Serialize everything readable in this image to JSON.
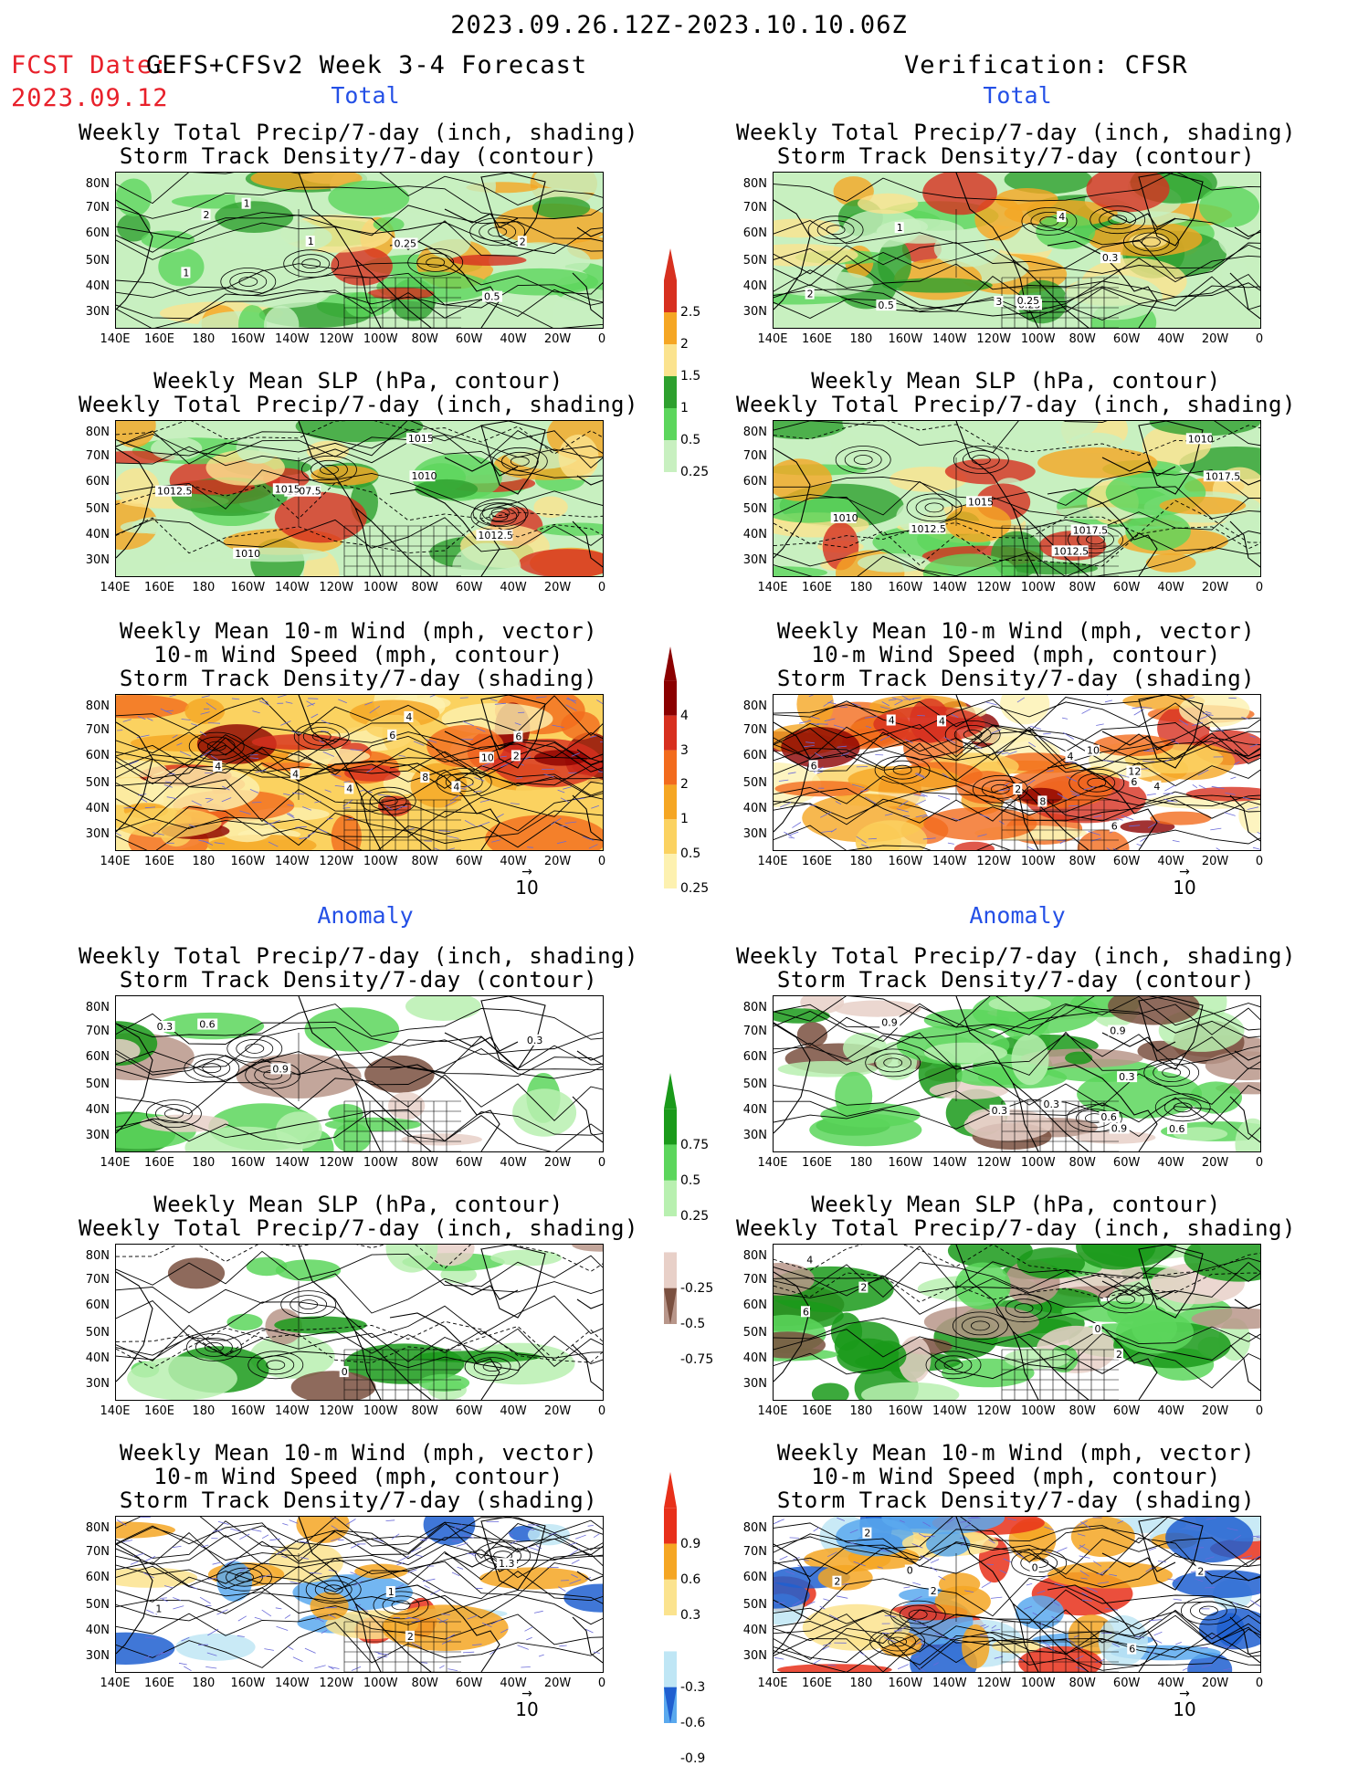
{
  "header": {
    "date_range": "2023.09.26.12Z-2023.10.10.06Z",
    "fcst_label": "FCST Date:",
    "fcst_date": "2023.09.12",
    "forecast_name": "GEFS+CFSv2 Week 3-4 Forecast",
    "verification": "Verification: CFSR"
  },
  "sections": {
    "total": "Total",
    "anomaly": "Anomaly"
  },
  "panel_titles": {
    "precip_storm": [
      "Weekly Total Precip/7-day (inch, shading)",
      "Storm Track Density/7-day (contour)"
    ],
    "slp_precip": [
      "Weekly Mean SLP (hPa, contour)",
      "Weekly Total Precip/7-day (inch, shading)"
    ],
    "wind_storm": [
      "Weekly Mean 10-m Wind (mph, vector)",
      "10-m Wind Speed (mph, contour)",
      "Storm Track Density/7-day (shading)"
    ]
  },
  "axes": {
    "lat_labels": [
      "80N",
      "70N",
      "60N",
      "50N",
      "40N",
      "30N"
    ],
    "lon_labels": [
      "140E",
      "160E",
      "180",
      "160W",
      "140W",
      "120W",
      "100W",
      "80W",
      "60W",
      "40W",
      "20W",
      "0"
    ]
  },
  "vector_reference": "10",
  "colorbars": {
    "precip_total": {
      "labels": [
        "2.5",
        "2",
        "1.5",
        "1",
        "0.5",
        "0.25"
      ],
      "colors": [
        "#d7301f",
        "#f5a623",
        "#fbe38e",
        "#2ea02e",
        "#5cd65c",
        "#c8f0c0"
      ]
    },
    "storm_total": {
      "labels": [
        "4",
        "3",
        "2",
        "1",
        "0.5",
        "0.25"
      ],
      "colors": [
        "#8b0000",
        "#d7301f",
        "#f26b1d",
        "#f5a623",
        "#fbd260",
        "#fdf1b0"
      ]
    },
    "precip_anom": {
      "labels": [
        "0.75",
        "0.5",
        "0.25",
        "-0.25",
        "-0.5",
        "-0.75"
      ],
      "colors": [
        "#1a9a1a",
        "#5cd65c",
        "#b8f0b0",
        "#e8d0c8",
        "#b8968a",
        "#7a5040"
      ]
    },
    "storm_anom": {
      "labels": [
        "0.9",
        "0.6",
        "0.3",
        "-0.3",
        "-0.6",
        "-0.9"
      ],
      "colors": [
        "#e8301a",
        "#f5a623",
        "#fbe38e",
        "#bfe6f5",
        "#5aa9ee",
        "#1f5fd0"
      ]
    }
  },
  "contour_labels": {
    "fc_precip_storm": [
      "1",
      "2",
      "1",
      "0.5",
      "1",
      "2",
      "0.25"
    ],
    "obs_precip_storm": [
      "0.25",
      "3",
      "2",
      "0.25",
      "0.3",
      "1",
      "4",
      "0.5"
    ],
    "fc_slp": [
      "1012.5",
      "1012.5",
      "1010",
      "1010",
      "1007.5",
      "1015",
      "1015"
    ],
    "obs_slp": [
      "1010",
      "1012.5",
      "1012.5",
      "1010",
      "1017.5",
      "1015",
      "1017.5"
    ],
    "fc_wind": [
      "4",
      "4",
      "6",
      "4",
      "6",
      "4",
      "8",
      "2",
      "4",
      "10"
    ],
    "obs_wind": [
      "4",
      "6",
      "2",
      "4",
      "4",
      "8",
      "10",
      "12",
      "4",
      "6",
      "6"
    ],
    "fc_anom_precip": [
      "0.3",
      "0.9",
      "0.6",
      "0.3"
    ],
    "obs_anom_precip": [
      "0.9",
      "0.6",
      "0.3",
      "0.9",
      "0.3",
      "0.9",
      "0.6",
      "0.3"
    ],
    "fc_anom_slp": [
      "0"
    ],
    "obs_anom_slp": [
      "2",
      "4",
      "6",
      "2",
      "0"
    ],
    "fc_anom_wind": [
      "1",
      "1",
      "2",
      "1.3"
    ],
    "obs_anom_wind": [
      "2",
      "2",
      "0",
      "0",
      "2",
      "2",
      "6"
    ]
  }
}
